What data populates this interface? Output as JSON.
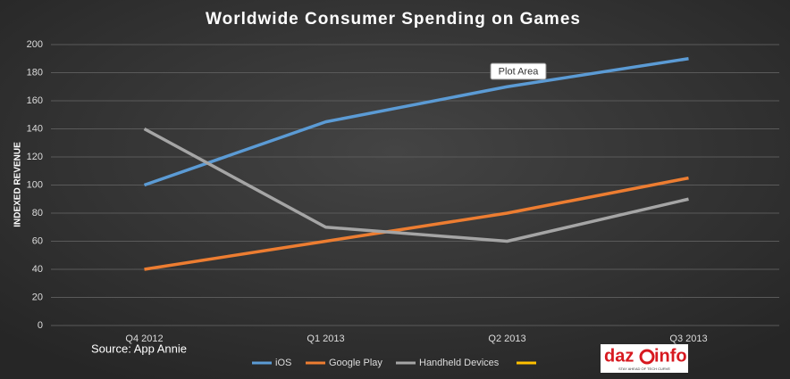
{
  "chart_data": {
    "type": "line",
    "title": "Worldwide Consumer Spending on Games",
    "y_label": "INDEXED REVENUE",
    "categories": [
      "Q4 2012",
      "Q1 2013",
      "Q2 2013",
      "Q3 2013"
    ],
    "series": [
      {
        "name": "iOS",
        "color": "#5b9bd5",
        "values": [
          100,
          145,
          170,
          190
        ]
      },
      {
        "name": "Google Play",
        "color": "#ed7d31",
        "values": [
          40,
          60,
          80,
          105
        ]
      },
      {
        "name": "Handheld Devices",
        "color": "#a5a5a5",
        "values": [
          140,
          70,
          60,
          90
        ]
      }
    ],
    "ylim": [
      0,
      200
    ],
    "yticks": [
      0,
      20,
      40,
      60,
      80,
      100,
      120,
      140,
      160,
      180,
      200
    ],
    "grid": true,
    "annotations": {
      "tooltip": "Plot Area",
      "source": "Source: App Annie"
    },
    "logo": {
      "left": "daz",
      "right": "info",
      "tagline": "STAY AHEAD OF TECH CURVE"
    }
  }
}
